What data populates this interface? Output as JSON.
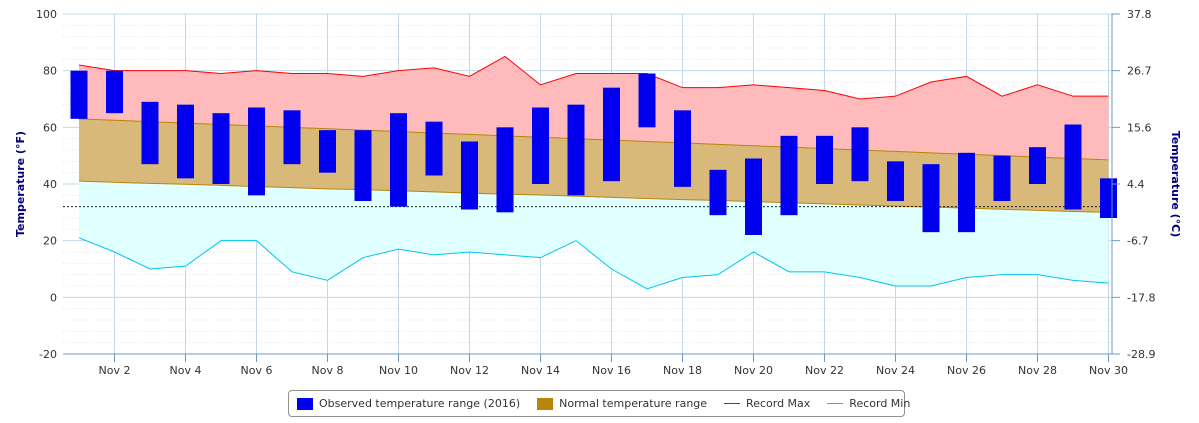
{
  "chart_data": {
    "type": "area",
    "x": [
      "Nov 1",
      "Nov 2",
      "Nov 3",
      "Nov 4",
      "Nov 5",
      "Nov 6",
      "Nov 7",
      "Nov 8",
      "Nov 9",
      "Nov 10",
      "Nov 11",
      "Nov 12",
      "Nov 13",
      "Nov 14",
      "Nov 15",
      "Nov 16",
      "Nov 17",
      "Nov 18",
      "Nov 19",
      "Nov 20",
      "Nov 21",
      "Nov 22",
      "Nov 23",
      "Nov 24",
      "Nov 25",
      "Nov 26",
      "Nov 27",
      "Nov 28",
      "Nov 29",
      "Nov 30"
    ],
    "xticks": [
      "Nov 2",
      "Nov 4",
      "Nov 6",
      "Nov 8",
      "Nov 10",
      "Nov 12",
      "Nov 14",
      "Nov 16",
      "Nov 18",
      "Nov 20",
      "Nov 22",
      "Nov 24",
      "Nov 26",
      "Nov 28",
      "Nov 30"
    ],
    "ylabel": "Temperature (°F)",
    "y2label": "Temperature (°C)",
    "ylim": [
      -20,
      100
    ],
    "yticks": [
      -20,
      0,
      20,
      40,
      60,
      80,
      100
    ],
    "y2ticks": [
      "-28.9",
      "-17.8",
      "-6.7",
      "4.4",
      "15.6",
      "26.7",
      "37.8"
    ],
    "freezing_line": 32,
    "grid": true,
    "legend_position": "bottom",
    "series": [
      {
        "name": "Observed temperature range (2016)",
        "kind": "columnrange",
        "color": "#0000ee",
        "low": [
          63,
          65,
          47,
          42,
          40,
          36,
          47,
          44,
          34,
          32,
          43,
          31,
          30,
          40,
          36,
          41,
          60,
          39,
          29,
          22,
          29,
          40,
          41,
          34,
          23,
          23,
          34,
          40,
          31,
          28
        ],
        "high": [
          80,
          80,
          69,
          68,
          65,
          67,
          66,
          59,
          59,
          65,
          62,
          55,
          60,
          67,
          68,
          74,
          79,
          66,
          45,
          49,
          57,
          57,
          60,
          48,
          47,
          51,
          50,
          53,
          61,
          42
        ]
      },
      {
        "name": "Normal temperature range",
        "kind": "arearange",
        "color": "#b8860b",
        "low": [
          41,
          40.6,
          40.2,
          39.9,
          39.5,
          39.1,
          38.7,
          38.3,
          38,
          37.6,
          37.2,
          36.8,
          36.4,
          36.1,
          35.7,
          35.3,
          34.9,
          34.5,
          34.2,
          33.8,
          33.4,
          33,
          32.6,
          32.2,
          31.9,
          31.5,
          31.1,
          30.7,
          30.3,
          30
        ],
        "high": [
          63,
          62.5,
          62,
          61.5,
          61,
          60.5,
          60,
          59.5,
          59,
          58.5,
          58,
          57.5,
          57,
          56.5,
          56,
          55.5,
          55,
          54.5,
          54,
          53.5,
          53,
          52.5,
          52,
          51.5,
          51,
          50.5,
          50,
          49.5,
          49,
          48.5
        ]
      },
      {
        "name": "Record Max",
        "kind": "line",
        "color": "#ff0000",
        "values": [
          82,
          80,
          80,
          80,
          79,
          80,
          79,
          79,
          78,
          80,
          81,
          78,
          85,
          75,
          79,
          79,
          79,
          74,
          74,
          75,
          74,
          73,
          70,
          71,
          76,
          78,
          71,
          75,
          71,
          71
        ]
      },
      {
        "name": "Record Min",
        "kind": "line",
        "color": "#00c5ef",
        "values": [
          21,
          16,
          10,
          11,
          20,
          20,
          9,
          6,
          14,
          17,
          15,
          16,
          15,
          14,
          20,
          10,
          3,
          7,
          8,
          16,
          9,
          9,
          7,
          4,
          4,
          7,
          8,
          8,
          6,
          5
        ]
      }
    ]
  },
  "colors": {
    "record_max_fill": "#ffbbbb",
    "record_min_fill": "#e0ffff",
    "normal_fill": "#d8b97a",
    "grid": "#c0d8e8",
    "axis": "#6f99c2",
    "axis_title": "#000080"
  }
}
